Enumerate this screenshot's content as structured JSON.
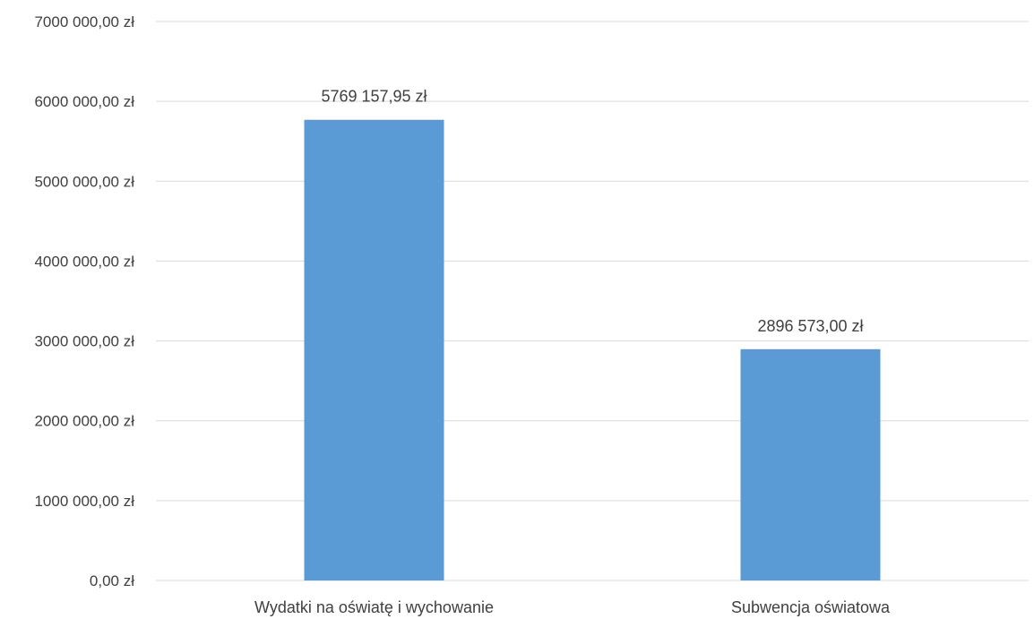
{
  "chart_data": {
    "type": "bar",
    "categories": [
      "Wydatki na oświatę i wychowanie",
      "Subwencja oświatowa"
    ],
    "values": [
      5769157.95,
      2896573.0
    ],
    "data_labels": [
      "5769 157,95 zł",
      "2896 573,00 zł"
    ],
    "ylim": [
      0,
      7000000
    ],
    "y_ticks": [
      0,
      1000000,
      2000000,
      3000000,
      4000000,
      5000000,
      6000000,
      7000000
    ],
    "y_tick_labels": [
      "0,00 zł",
      "1000 000,00 zł",
      "2000 000,00 zł",
      "3000 000,00 zł",
      "4000 000,00 zł",
      "5000 000,00 zł",
      "6000 000,00 zł",
      "7000 000,00 zł"
    ],
    "grid": true,
    "legend": "none",
    "colors": {
      "bar": "#5b9bd5",
      "grid": "#d9d9d9",
      "text": "#404040"
    }
  }
}
